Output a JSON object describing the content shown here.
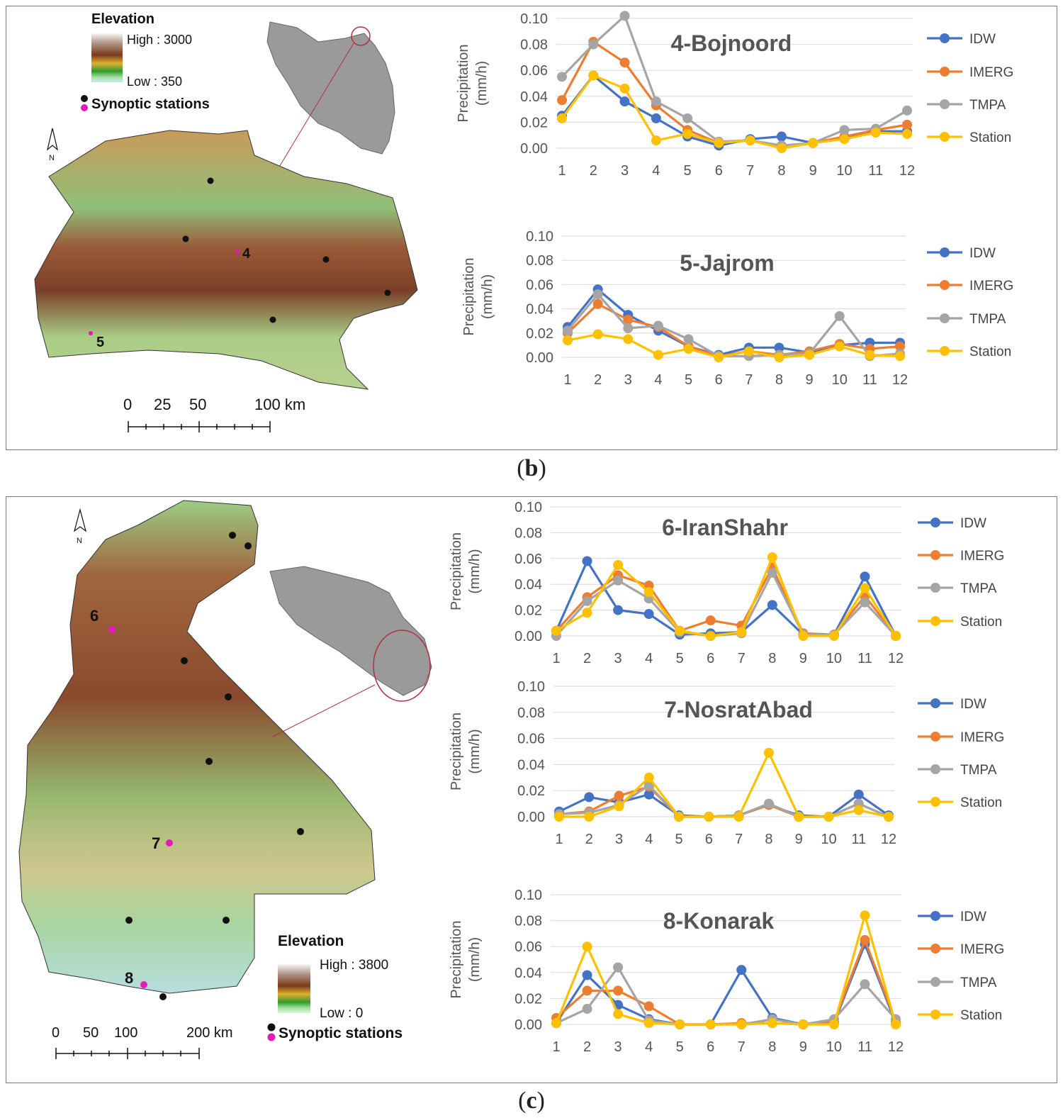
{
  "panel_b": {
    "label": "b",
    "map": {
      "elevation_title": "Elevation",
      "high_label": "High : 3000",
      "low_label": "Low : 350",
      "stations_label": "Synoptic stations",
      "north_label": "N",
      "station_labels": [
        "4",
        "5"
      ],
      "scale_labels": [
        "0",
        "25",
        "50",
        "100 km"
      ]
    }
  },
  "panel_c": {
    "label": "c",
    "map": {
      "elevation_title": "Elevation",
      "high_label": "High : 3800",
      "low_label": "Low : 0",
      "stations_label": "Synoptic stations",
      "north_label": "N",
      "station_labels": [
        "6",
        "7",
        "8"
      ],
      "scale_labels": [
        "0",
        "50",
        "100",
        "200 km"
      ]
    }
  },
  "colors": {
    "IDW": "#4472c4",
    "IMERG": "#ed7d31",
    "TMPA": "#a5a5a5",
    "Station": "#ffc000"
  },
  "chart_data": [
    {
      "id": "bojnoord",
      "type": "line",
      "title": "4-Bojnoord",
      "xlabel": "",
      "ylabel": "Precipitation (mm/h)",
      "ylabel_lines": [
        "Precipitation",
        "(mm/h)"
      ],
      "ylim": [
        0,
        0.1
      ],
      "yticks": [
        "0.00",
        "0.02",
        "0.04",
        "0.06",
        "0.08",
        "0.10"
      ],
      "categories": [
        "1",
        "2",
        "3",
        "4",
        "5",
        "6",
        "7",
        "8",
        "9",
        "10",
        "11",
        "12"
      ],
      "series": [
        {
          "name": "IDW",
          "values": [
            0.025,
            0.056,
            0.036,
            0.023,
            0.009,
            0.002,
            0.007,
            0.009,
            0.004,
            0.008,
            0.013,
            0.013
          ]
        },
        {
          "name": "IMERG",
          "values": [
            0.037,
            0.082,
            0.066,
            0.033,
            0.014,
            0.004,
            0.006,
            0.002,
            0.004,
            0.009,
            0.014,
            0.018
          ]
        },
        {
          "name": "TMPA",
          "values": [
            0.055,
            0.08,
            0.102,
            0.036,
            0.023,
            0.005,
            0.006,
            0.002,
            0.004,
            0.014,
            0.015,
            0.029
          ]
        },
        {
          "name": "Station",
          "values": [
            0.023,
            0.056,
            0.046,
            0.006,
            0.011,
            0.004,
            0.006,
            0.0,
            0.004,
            0.007,
            0.012,
            0.011
          ]
        }
      ]
    },
    {
      "id": "jajrom",
      "type": "line",
      "title": "5-Jajrom",
      "xlabel": "",
      "ylabel": "Precipitation (mm/h)",
      "ylabel_lines": [
        "Precipitation",
        "(mm/h)"
      ],
      "ylim": [
        0,
        0.1
      ],
      "yticks": [
        "0.00",
        "0.02",
        "0.04",
        "0.06",
        "0.08",
        "0.10"
      ],
      "categories": [
        "1",
        "2",
        "3",
        "4",
        "5",
        "6",
        "7",
        "8",
        "9",
        "10",
        "11",
        "12"
      ],
      "series": [
        {
          "name": "IDW",
          "values": [
            0.025,
            0.056,
            0.035,
            0.022,
            0.009,
            0.002,
            0.008,
            0.008,
            0.004,
            0.01,
            0.012,
            0.012
          ]
        },
        {
          "name": "IMERG",
          "values": [
            0.02,
            0.044,
            0.031,
            0.025,
            0.009,
            0.001,
            0.005,
            0.002,
            0.005,
            0.011,
            0.007,
            0.009
          ]
        },
        {
          "name": "TMPA",
          "values": [
            0.022,
            0.052,
            0.024,
            0.026,
            0.015,
            0.001,
            0.001,
            0.002,
            0.003,
            0.034,
            0.001,
            0.003
          ]
        },
        {
          "name": "Station",
          "values": [
            0.014,
            0.019,
            0.015,
            0.002,
            0.007,
            0.0,
            0.005,
            0.0,
            0.002,
            0.009,
            0.002,
            0.001
          ]
        }
      ]
    },
    {
      "id": "iranshahr",
      "type": "line",
      "title": "6-IranShahr",
      "xlabel": "",
      "ylabel": "Precipitation (mm/h)",
      "ylabel_lines": [
        "Precipitation",
        "(mm/h)"
      ],
      "ylim": [
        0,
        0.1
      ],
      "yticks": [
        "0.00",
        "0.02",
        "0.04",
        "0.06",
        "0.08",
        "0.10"
      ],
      "categories": [
        "1",
        "2",
        "3",
        "4",
        "5",
        "6",
        "7",
        "8",
        "9",
        "10",
        "11",
        "12"
      ],
      "series": [
        {
          "name": "IDW",
          "values": [
            0.004,
            0.058,
            0.02,
            0.017,
            0.001,
            0.002,
            0.003,
            0.024,
            0.001,
            0.001,
            0.046,
            0.0
          ]
        },
        {
          "name": "IMERG",
          "values": [
            0.004,
            0.03,
            0.047,
            0.039,
            0.004,
            0.012,
            0.008,
            0.053,
            0.002,
            0.001,
            0.031,
            0.0
          ]
        },
        {
          "name": "TMPA",
          "values": [
            0.0,
            0.027,
            0.043,
            0.029,
            0.003,
            0.0,
            0.002,
            0.049,
            0.001,
            0.001,
            0.026,
            0.0
          ]
        },
        {
          "name": "Station",
          "values": [
            0.004,
            0.018,
            0.055,
            0.034,
            0.004,
            0.0,
            0.003,
            0.061,
            0.0,
            0.0,
            0.037,
            0.0
          ]
        }
      ]
    },
    {
      "id": "nosratabad",
      "type": "line",
      "title": "7-NosratAbad",
      "xlabel": "",
      "ylabel": "Precipitation (mm/h)",
      "ylabel_lines": [
        "Precipitation",
        "(mm/h)"
      ],
      "ylim": [
        0,
        0.1
      ],
      "yticks": [
        "0.00",
        "0.02",
        "0.04",
        "0.06",
        "0.08",
        "0.10"
      ],
      "categories": [
        "1",
        "2",
        "3",
        "4",
        "5",
        "6",
        "7",
        "8",
        "9",
        "10",
        "11",
        "12"
      ],
      "series": [
        {
          "name": "IDW",
          "values": [
            0.004,
            0.015,
            0.011,
            0.017,
            0.001,
            0.0,
            0.001,
            0.009,
            0.001,
            0.0,
            0.017,
            0.001
          ]
        },
        {
          "name": "IMERG",
          "values": [
            0.002,
            0.004,
            0.016,
            0.023,
            0.0,
            0.0,
            0.001,
            0.009,
            0.0,
            0.0,
            0.01,
            0.0
          ]
        },
        {
          "name": "TMPA",
          "values": [
            0.002,
            0.003,
            0.009,
            0.024,
            0.0,
            0.0,
            0.001,
            0.01,
            0.0,
            0.0,
            0.01,
            0.0
          ]
        },
        {
          "name": "Station",
          "values": [
            0.0,
            0.0,
            0.008,
            0.03,
            0.0,
            0.0,
            0.0,
            0.049,
            0.0,
            0.0,
            0.005,
            0.0
          ]
        }
      ]
    },
    {
      "id": "konarak",
      "type": "line",
      "title": "8-Konarak",
      "xlabel": "",
      "ylabel": "Precipitation (mm/h)",
      "ylabel_lines": [
        "Precipitation",
        "(mm/h)"
      ],
      "ylim": [
        0,
        0.1
      ],
      "yticks": [
        "0.00",
        "0.02",
        "0.04",
        "0.06",
        "0.08",
        "0.10"
      ],
      "categories": [
        "1",
        "2",
        "3",
        "4",
        "5",
        "6",
        "7",
        "8",
        "9",
        "10",
        "11",
        "12"
      ],
      "series": [
        {
          "name": "IDW",
          "values": [
            0.001,
            0.038,
            0.015,
            0.004,
            0.0,
            0.0,
            0.042,
            0.005,
            0.0,
            0.001,
            0.062,
            0.001
          ]
        },
        {
          "name": "IMERG",
          "values": [
            0.005,
            0.026,
            0.026,
            0.014,
            0.0,
            0.0,
            0.001,
            0.001,
            0.0,
            0.002,
            0.065,
            0.002
          ]
        },
        {
          "name": "TMPA",
          "values": [
            0.001,
            0.012,
            0.044,
            0.003,
            0.0,
            0.0,
            0.0,
            0.004,
            0.0,
            0.004,
            0.031,
            0.004
          ]
        },
        {
          "name": "Station",
          "values": [
            0.001,
            0.06,
            0.008,
            0.001,
            0.0,
            0.0,
            0.0,
            0.001,
            0.0,
            0.0,
            0.084,
            0.0
          ]
        }
      ]
    }
  ]
}
